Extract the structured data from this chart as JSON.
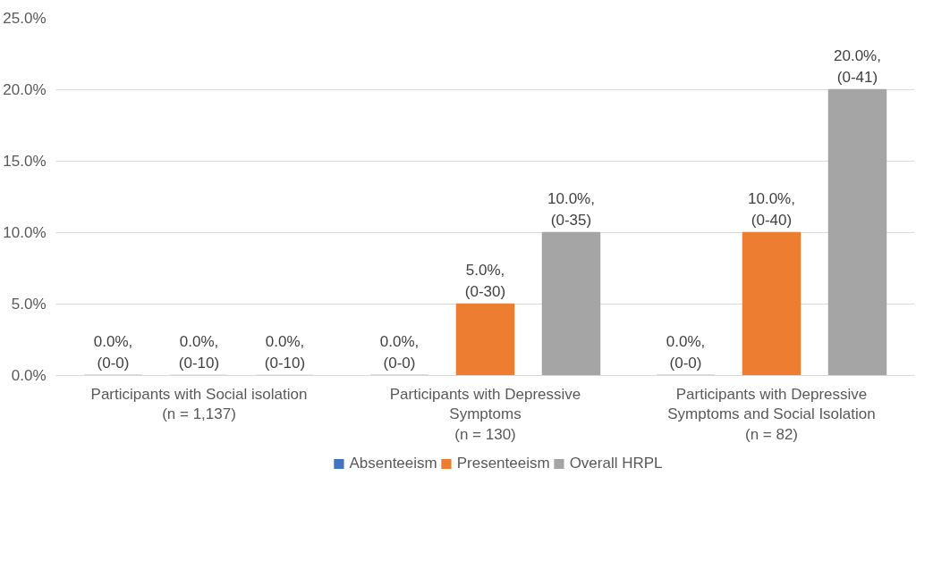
{
  "chart_data": {
    "type": "bar",
    "categories": [
      "Participants with Social isolation\n(n = 1,137)",
      "Participants with Depressive\nSymptoms\n(n = 130)",
      "Participants with Depressive\nSymptoms and Social Isolation\n(n = 82)"
    ],
    "series": [
      {
        "name": "Absenteeism",
        "color": "#4472c4",
        "values": [
          0,
          0,
          0
        ],
        "value_labels": [
          "0.0%,\n(0-0)",
          "0.0%,\n(0-0)",
          "0.0%,\n(0-0)"
        ]
      },
      {
        "name": "Presenteeism",
        "color": "#ed7d31",
        "values": [
          0,
          5,
          10
        ],
        "value_labels": [
          "0.0%,\n(0-10)",
          "5.0%,\n(0-30)",
          "10.0%,\n(0-40)"
        ]
      },
      {
        "name": "Overall HRPL",
        "color": "#a5a5a5",
        "values": [
          0,
          10,
          20
        ],
        "value_labels": [
          "0.0%,\n(0-10)",
          "10.0%,\n(0-35)",
          "20.0%,\n(0-41)"
        ]
      }
    ],
    "ylim": [
      0,
      25
    ],
    "yticks": [
      {
        "value": 0,
        "label": "0.0%"
      },
      {
        "value": 5,
        "label": "5.0%"
      },
      {
        "value": 10,
        "label": "10.0%"
      },
      {
        "value": 15,
        "label": "15.0%"
      },
      {
        "value": 20,
        "label": "20.0%"
      },
      {
        "value": 25,
        "label": "25.0%"
      }
    ],
    "grid": "y",
    "legend": "bottom"
  }
}
